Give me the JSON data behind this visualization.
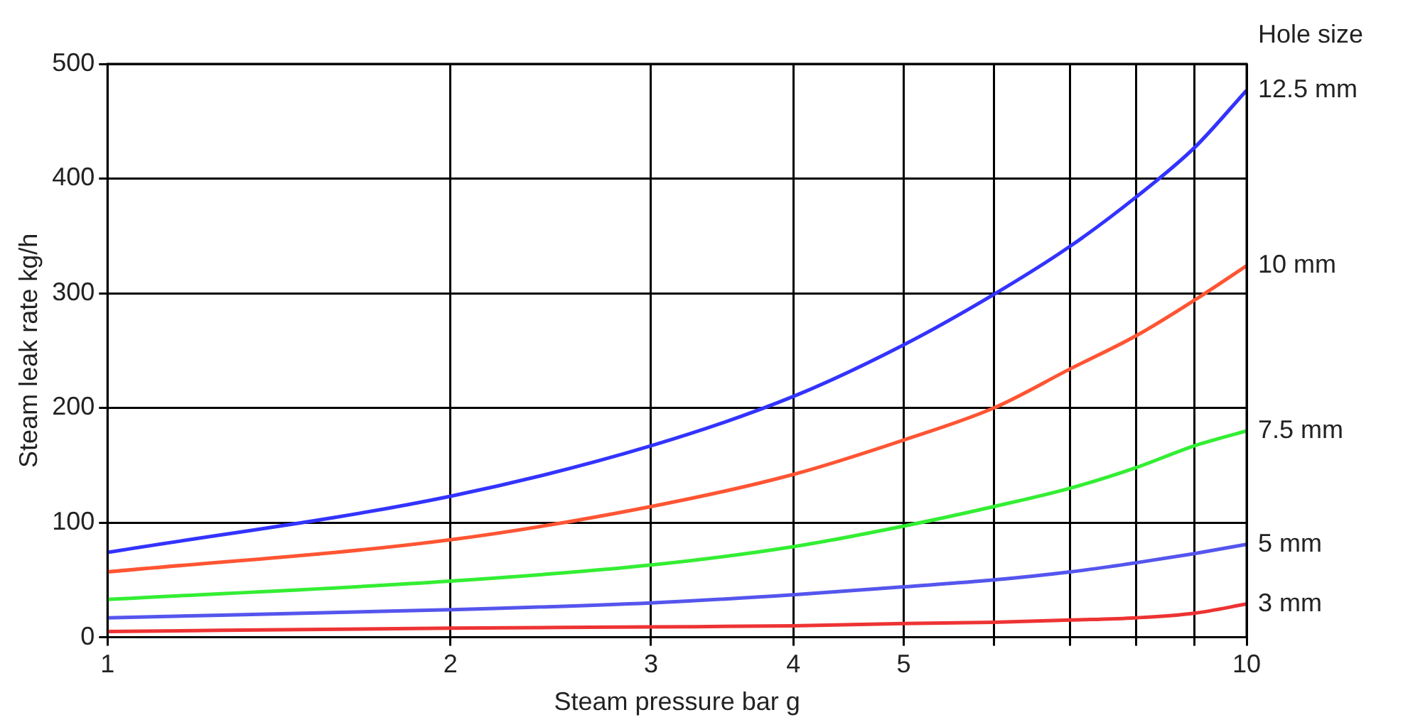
{
  "chart_data": {
    "type": "line",
    "xlabel": "Steam pressure bar g",
    "ylabel": "Steam leak rate kg/h",
    "legend_title": "Hole size",
    "log": "x",
    "grid": true,
    "legend": false,
    "marker": "none",
    "line_style": "solid",
    "x": [
      1,
      2,
      3,
      4,
      5,
      6,
      7,
      8,
      9,
      10
    ],
    "xlim": [
      1,
      10
    ],
    "xticks": [
      1,
      2,
      3,
      4,
      5,
      {
        "value": 6,
        "label": null
      },
      {
        "value": 7,
        "label": null
      },
      {
        "value": 8,
        "label": null
      },
      {
        "value": 9,
        "label": null
      },
      10
    ],
    "ylim": [
      0,
      500
    ],
    "yticks": [
      0,
      100,
      200,
      300,
      400,
      500
    ],
    "series": [
      {
        "name": "12.5 mm",
        "color": "#3333ff",
        "values": [
          74,
          123,
          167,
          210,
          255,
          299,
          341,
          384,
          427,
          477
        ]
      },
      {
        "name": "10 mm",
        "color": "#ff5533",
        "values": [
          57,
          85,
          114,
          142,
          172,
          200,
          234,
          263,
          294,
          324
        ]
      },
      {
        "name": "7.5 mm",
        "color": "#33ee33",
        "values": [
          33,
          49,
          63,
          79,
          97,
          114,
          130,
          148,
          167,
          180
        ]
      },
      {
        "name": "5 mm",
        "color": "#5555ee",
        "values": [
          17,
          24,
          30,
          37,
          44,
          50,
          57,
          65,
          73,
          81
        ]
      },
      {
        "name": "3 mm",
        "color": "#ee3333",
        "values": [
          5,
          8,
          9,
          10,
          12,
          13,
          15,
          17,
          21,
          29
        ]
      }
    ]
  }
}
